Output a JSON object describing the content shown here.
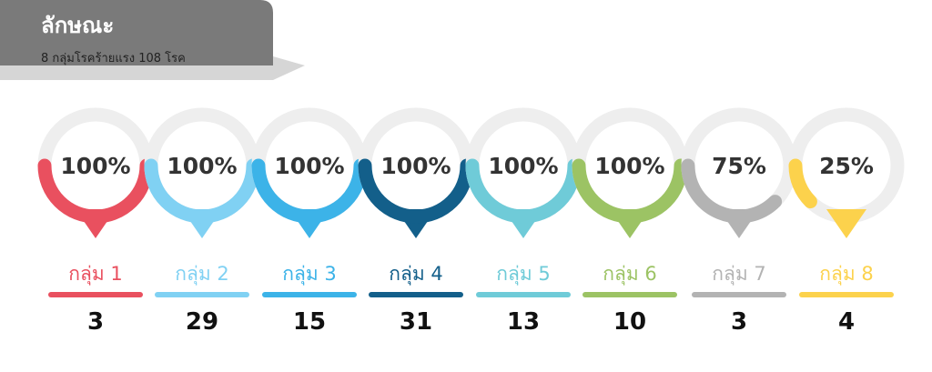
{
  "chart_data": {
    "type": "gauge",
    "title": "ลักษณะ",
    "subtitle": "8 กลุ่มโรคร้ายแรง 108 โรค",
    "categories": [
      "กลุ่ม 1",
      "กลุ่ม 2",
      "กลุ่ม 3",
      "กลุ่ม 4",
      "กลุ่ม 5",
      "กลุ่ม 6",
      "กลุ่ม 7",
      "กลุ่ม 8"
    ],
    "values": [
      100,
      100,
      100,
      100,
      100,
      100,
      75,
      25
    ],
    "value_labels": [
      "100%",
      "100%",
      "100%",
      "100%",
      "100%",
      "100%",
      "75%",
      "25%"
    ],
    "counts": [
      3,
      29,
      15,
      31,
      13,
      10,
      3,
      4
    ],
    "colors": [
      "#e9505f",
      "#80d1f3",
      "#3cb3e8",
      "#135f8a",
      "#6fcbd8",
      "#9cc364",
      "#b3b3b3",
      "#fcd24c"
    ],
    "ylim": [
      0,
      100
    ]
  }
}
